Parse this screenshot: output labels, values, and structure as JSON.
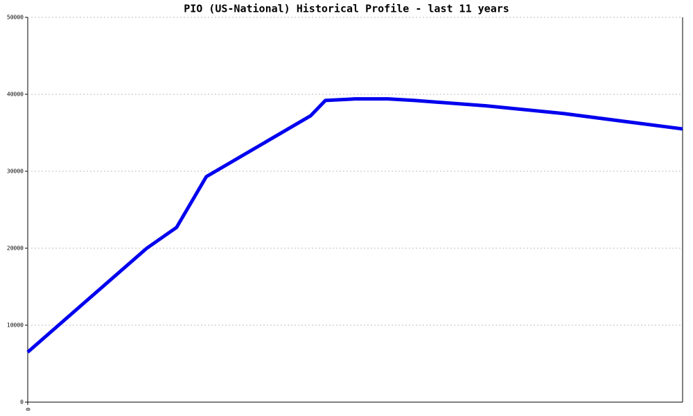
{
  "chart_data": {
    "type": "line",
    "title": "PIO (US-National) Historical Profile - last 11 years",
    "x": [
      0,
      2,
      2.5,
      3,
      4.75,
      5,
      5.5,
      6.05,
      6.5,
      7.7,
      9,
      11
    ],
    "series": [
      {
        "color": "#0000ee",
        "values": [
          6500,
          20000,
          22700,
          29300,
          37200,
          39200,
          39400,
          39400,
          39200,
          38500,
          37500,
          35500
        ]
      }
    ],
    "xlim": [
      0,
      11
    ],
    "xticks": [
      0
    ],
    "ylim": [
      0,
      50000
    ],
    "yticks": [
      0,
      10000,
      20000,
      30000,
      40000,
      50000
    ],
    "grid": true
  }
}
